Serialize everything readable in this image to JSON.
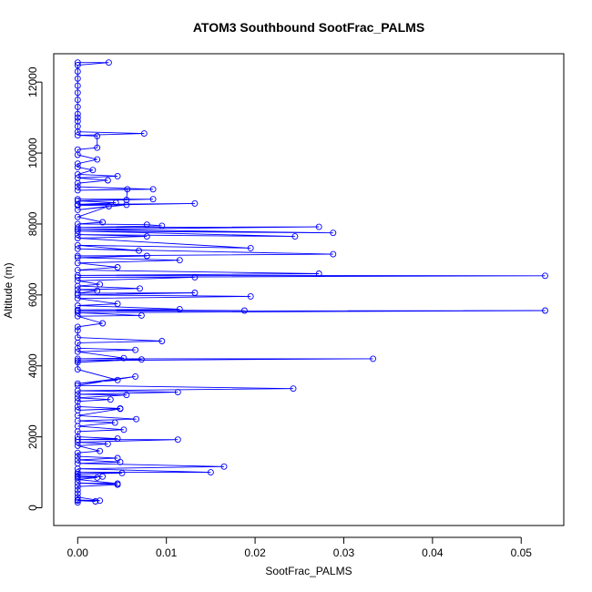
{
  "chart_data": {
    "type": "line",
    "title": "ATOM3 Southbound SootFrac_PALMS",
    "xlabel": "SootFrac_PALMS",
    "ylabel": "Altitude (m)",
    "xlim": [
      -0.0027,
      0.0548
    ],
    "ylim": [
      -500,
      12800
    ],
    "x_ticks": [
      0.0,
      0.01,
      0.02,
      0.03,
      0.04,
      0.05
    ],
    "x_tick_labels": [
      "0.00",
      "0.01",
      "0.02",
      "0.03",
      "0.04",
      "0.05"
    ],
    "y_ticks": [
      0,
      2000,
      4000,
      6000,
      8000,
      10000,
      12000
    ],
    "y_tick_labels": [
      "0",
      "2000",
      "4000",
      "6000",
      "8000",
      "10000",
      "12000"
    ],
    "grid": false,
    "series": [
      {
        "color": "#0000ff",
        "marker": "open-circle",
        "points": [
          [
            0.0,
            12550
          ],
          [
            0.0035,
            12550
          ],
          [
            0.0,
            12480
          ],
          [
            0.0,
            12300
          ],
          [
            0.0,
            12100
          ],
          [
            0.0,
            11900
          ],
          [
            0.0,
            11700
          ],
          [
            0.0,
            11500
          ],
          [
            0.0,
            11300
          ],
          [
            0.0,
            11100
          ],
          [
            0.0,
            11000
          ],
          [
            0.0,
            10900
          ],
          [
            0.0,
            10750
          ],
          [
            0.0,
            10600
          ],
          [
            0.0075,
            10550
          ],
          [
            0.0,
            10500
          ],
          [
            0.0022,
            10480
          ],
          [
            0.0022,
            10150
          ],
          [
            0.0,
            10100
          ],
          [
            0.0,
            9950
          ],
          [
            0.0022,
            9820
          ],
          [
            0.0,
            9700
          ],
          [
            0.0,
            9600
          ],
          [
            0.0017,
            9520
          ],
          [
            0.0,
            9400
          ],
          [
            0.0045,
            9350
          ],
          [
            0.0,
            9300
          ],
          [
            0.0034,
            9230
          ],
          [
            0.0,
            9150
          ],
          [
            0.0,
            9050
          ],
          [
            0.0085,
            8980
          ],
          [
            0.0,
            8950
          ],
          [
            0.0056,
            8980
          ],
          [
            0.0055,
            8680
          ],
          [
            0.0,
            8700
          ],
          [
            0.0085,
            8700
          ],
          [
            0.0,
            8650
          ],
          [
            0.0043,
            8600
          ],
          [
            0.0,
            8550
          ],
          [
            0.0132,
            8580
          ],
          [
            0.0,
            8520
          ],
          [
            0.0055,
            8540
          ],
          [
            0.0,
            8400
          ],
          [
            0.0035,
            8500
          ],
          [
            0.0,
            8200
          ],
          [
            0.0028,
            8050
          ],
          [
            0.0,
            8000
          ],
          [
            0.0078,
            7980
          ],
          [
            0.0095,
            7950
          ],
          [
            0.0,
            7900
          ],
          [
            0.0272,
            7920
          ],
          [
            0.0,
            7850
          ],
          [
            0.0288,
            7750
          ],
          [
            0.0,
            7800
          ],
          [
            0.0245,
            7650
          ],
          [
            0.0,
            7700
          ],
          [
            0.0078,
            7650
          ],
          [
            0.0,
            7600
          ],
          [
            0.0195,
            7320
          ],
          [
            0.0,
            7400
          ],
          [
            0.0069,
            7250
          ],
          [
            0.0,
            7300
          ],
          [
            0.0288,
            7150
          ],
          [
            0.0,
            7100
          ],
          [
            0.0078,
            7100
          ],
          [
            0.0,
            7050
          ],
          [
            0.0115,
            6980
          ],
          [
            0.0,
            6900
          ],
          [
            0.0045,
            6780
          ],
          [
            0.0,
            6700
          ],
          [
            0.0272,
            6600
          ],
          [
            0.0,
            6550
          ],
          [
            0.0527,
            6540
          ],
          [
            0.0,
            6500
          ],
          [
            0.0132,
            6500
          ],
          [
            0.0,
            6400
          ],
          [
            0.0025,
            6300
          ],
          [
            0.0,
            6250
          ],
          [
            0.007,
            6180
          ],
          [
            0.0,
            6150
          ],
          [
            0.0022,
            6120
          ],
          [
            0.0,
            6050
          ],
          [
            0.0132,
            6060
          ],
          [
            0.0,
            6000
          ],
          [
            0.0195,
            5960
          ],
          [
            0.0,
            5900
          ],
          [
            0.0045,
            5750
          ],
          [
            0.0,
            5700
          ],
          [
            0.0115,
            5600
          ],
          [
            0.0,
            5580
          ],
          [
            0.0188,
            5560
          ],
          [
            0.0,
            5550
          ],
          [
            0.0527,
            5560
          ],
          [
            0.0,
            5500
          ],
          [
            0.0072,
            5420
          ],
          [
            0.0,
            5400
          ],
          [
            0.0028,
            5200
          ],
          [
            0.0,
            5100
          ],
          [
            0.0,
            5000
          ],
          [
            0.0,
            4800
          ],
          [
            0.0095,
            4700
          ],
          [
            0.0,
            4650
          ],
          [
            0.0,
            4500
          ],
          [
            0.0065,
            4450
          ],
          [
            0.0,
            4400
          ],
          [
            0.0052,
            4220
          ],
          [
            0.0,
            4200
          ],
          [
            0.0333,
            4200
          ],
          [
            0.0,
            4150
          ],
          [
            0.0072,
            4180
          ],
          [
            0.0,
            4100
          ],
          [
            0.0,
            3900
          ],
          [
            0.0045,
            3600
          ],
          [
            0.0,
            3500
          ],
          [
            0.0065,
            3700
          ],
          [
            0.0,
            3450
          ],
          [
            0.0243,
            3360
          ],
          [
            0.0,
            3300
          ],
          [
            0.0113,
            3260
          ],
          [
            0.0,
            3200
          ],
          [
            0.0055,
            3180
          ],
          [
            0.0,
            3100
          ],
          [
            0.0037,
            3050
          ],
          [
            0.0,
            3000
          ],
          [
            0.0,
            2850
          ],
          [
            0.0048,
            2800
          ],
          [
            0.0,
            2750
          ],
          [
            0.0048,
            2790
          ],
          [
            0.0,
            2600
          ],
          [
            0.0066,
            2500
          ],
          [
            0.0,
            2450
          ],
          [
            0.0042,
            2400
          ],
          [
            0.0,
            2300
          ],
          [
            0.0052,
            2200
          ],
          [
            0.0,
            2150
          ],
          [
            0.0,
            2000
          ],
          [
            0.0045,
            1950
          ],
          [
            0.0,
            1920
          ],
          [
            0.0113,
            1920
          ],
          [
            0.0,
            1850
          ],
          [
            0.0034,
            1800
          ],
          [
            0.0,
            1750
          ],
          [
            0.0025,
            1600
          ],
          [
            0.0,
            1550
          ],
          [
            0.0,
            1450
          ],
          [
            0.0045,
            1400
          ],
          [
            0.0,
            1350
          ],
          [
            0.0048,
            1290
          ],
          [
            0.0,
            1250
          ],
          [
            0.0165,
            1160
          ],
          [
            0.0,
            1100
          ],
          [
            0.015,
            1000
          ],
          [
            0.0,
            1000
          ],
          [
            0.005,
            980
          ],
          [
            0.0,
            950
          ],
          [
            0.0,
            900
          ],
          [
            0.0028,
            880
          ],
          [
            0.0,
            860
          ],
          [
            0.0022,
            850
          ],
          [
            0.0,
            800
          ],
          [
            0.0045,
            680
          ],
          [
            0.0,
            700
          ],
          [
            0.0045,
            650
          ],
          [
            0.0,
            600
          ],
          [
            0.0,
            500
          ],
          [
            0.0,
            400
          ],
          [
            0.0,
            300
          ],
          [
            0.0025,
            200
          ],
          [
            0.0,
            220
          ],
          [
            0.002,
            180
          ],
          [
            0.0,
            200
          ],
          [
            0.0,
            150
          ]
        ]
      }
    ]
  }
}
